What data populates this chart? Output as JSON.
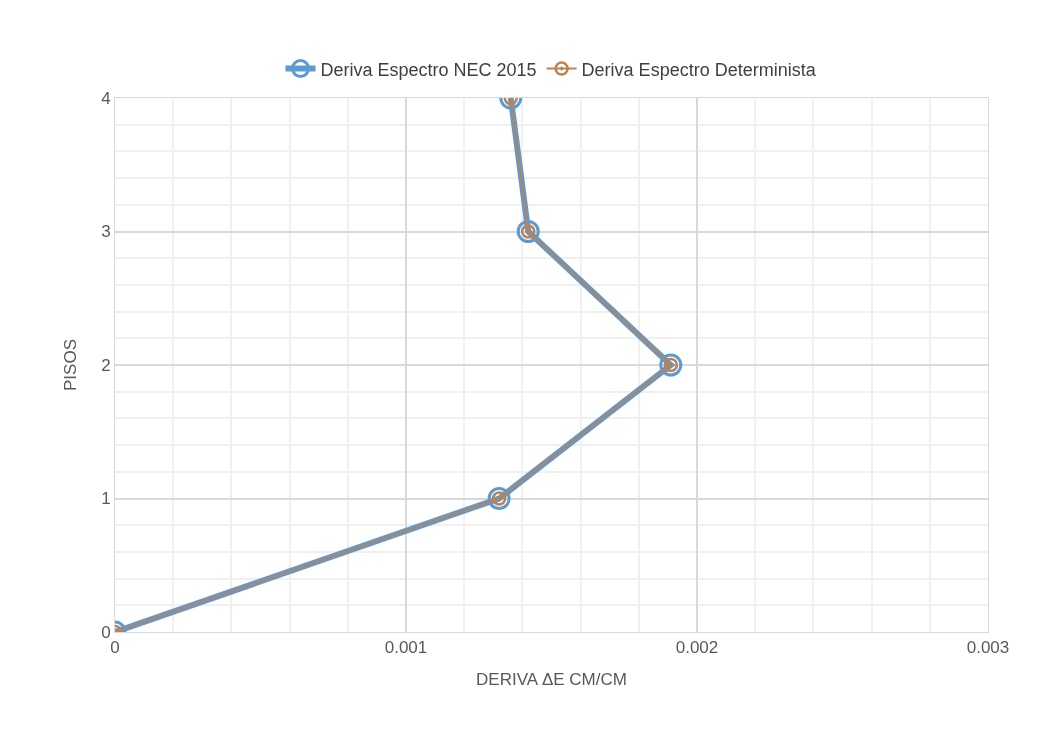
{
  "chart_data": {
    "type": "line",
    "xlabel": "DERIVA ΔE CM/CM",
    "ylabel": "PISOS",
    "xlim": [
      0,
      0.003
    ],
    "xticks": [
      0,
      0.001,
      0.002,
      0.003
    ],
    "ylim": [
      0,
      4
    ],
    "yticks": [
      0,
      1,
      2,
      3,
      4
    ],
    "grid": true,
    "legend": "top",
    "marker": "circle",
    "line_style": "solid",
    "series": [
      {
        "name": "Deriva Espectro NEC 2015",
        "color": "#5b9bd5",
        "x": [
          0,
          0.00132,
          0.00191,
          0.00142,
          0.00136
        ],
        "values": [
          0,
          1,
          2,
          3,
          4
        ]
      },
      {
        "name": "Deriva Espectro Determinista",
        "color": "#c0804f",
        "x": [
          0,
          0.00132,
          0.00191,
          0.00142,
          0.00136
        ],
        "values": [
          0,
          1,
          2,
          3,
          4
        ]
      }
    ]
  }
}
